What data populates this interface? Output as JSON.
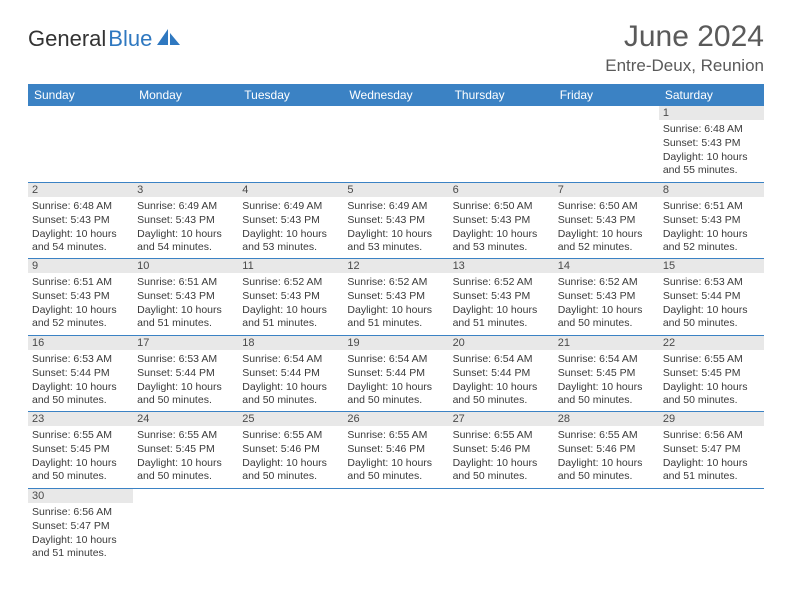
{
  "brand": {
    "part1": "General",
    "part2": "Blue"
  },
  "title": "June 2024",
  "location": "Entre-Deux, Reunion",
  "colors": {
    "header_bg": "#3b82c4",
    "header_text": "#ffffff",
    "daynum_bg": "#e8e8e8",
    "text": "#3a3a3a",
    "title_color": "#5a5a5a",
    "row_border": "#3b82c4"
  },
  "day_headers": [
    "Sunday",
    "Monday",
    "Tuesday",
    "Wednesday",
    "Thursday",
    "Friday",
    "Saturday"
  ],
  "weeks": [
    [
      null,
      null,
      null,
      null,
      null,
      null,
      {
        "n": "1",
        "sunrise": "6:48 AM",
        "sunset": "5:43 PM",
        "daylight": "10 hours and 55 minutes."
      }
    ],
    [
      {
        "n": "2",
        "sunrise": "6:48 AM",
        "sunset": "5:43 PM",
        "daylight": "10 hours and 54 minutes."
      },
      {
        "n": "3",
        "sunrise": "6:49 AM",
        "sunset": "5:43 PM",
        "daylight": "10 hours and 54 minutes."
      },
      {
        "n": "4",
        "sunrise": "6:49 AM",
        "sunset": "5:43 PM",
        "daylight": "10 hours and 53 minutes."
      },
      {
        "n": "5",
        "sunrise": "6:49 AM",
        "sunset": "5:43 PM",
        "daylight": "10 hours and 53 minutes."
      },
      {
        "n": "6",
        "sunrise": "6:50 AM",
        "sunset": "5:43 PM",
        "daylight": "10 hours and 53 minutes."
      },
      {
        "n": "7",
        "sunrise": "6:50 AM",
        "sunset": "5:43 PM",
        "daylight": "10 hours and 52 minutes."
      },
      {
        "n": "8",
        "sunrise": "6:51 AM",
        "sunset": "5:43 PM",
        "daylight": "10 hours and 52 minutes."
      }
    ],
    [
      {
        "n": "9",
        "sunrise": "6:51 AM",
        "sunset": "5:43 PM",
        "daylight": "10 hours and 52 minutes."
      },
      {
        "n": "10",
        "sunrise": "6:51 AM",
        "sunset": "5:43 PM",
        "daylight": "10 hours and 51 minutes."
      },
      {
        "n": "11",
        "sunrise": "6:52 AM",
        "sunset": "5:43 PM",
        "daylight": "10 hours and 51 minutes."
      },
      {
        "n": "12",
        "sunrise": "6:52 AM",
        "sunset": "5:43 PM",
        "daylight": "10 hours and 51 minutes."
      },
      {
        "n": "13",
        "sunrise": "6:52 AM",
        "sunset": "5:43 PM",
        "daylight": "10 hours and 51 minutes."
      },
      {
        "n": "14",
        "sunrise": "6:52 AM",
        "sunset": "5:43 PM",
        "daylight": "10 hours and 50 minutes."
      },
      {
        "n": "15",
        "sunrise": "6:53 AM",
        "sunset": "5:44 PM",
        "daylight": "10 hours and 50 minutes."
      }
    ],
    [
      {
        "n": "16",
        "sunrise": "6:53 AM",
        "sunset": "5:44 PM",
        "daylight": "10 hours and 50 minutes."
      },
      {
        "n": "17",
        "sunrise": "6:53 AM",
        "sunset": "5:44 PM",
        "daylight": "10 hours and 50 minutes."
      },
      {
        "n": "18",
        "sunrise": "6:54 AM",
        "sunset": "5:44 PM",
        "daylight": "10 hours and 50 minutes."
      },
      {
        "n": "19",
        "sunrise": "6:54 AM",
        "sunset": "5:44 PM",
        "daylight": "10 hours and 50 minutes."
      },
      {
        "n": "20",
        "sunrise": "6:54 AM",
        "sunset": "5:44 PM",
        "daylight": "10 hours and 50 minutes."
      },
      {
        "n": "21",
        "sunrise": "6:54 AM",
        "sunset": "5:45 PM",
        "daylight": "10 hours and 50 minutes."
      },
      {
        "n": "22",
        "sunrise": "6:55 AM",
        "sunset": "5:45 PM",
        "daylight": "10 hours and 50 minutes."
      }
    ],
    [
      {
        "n": "23",
        "sunrise": "6:55 AM",
        "sunset": "5:45 PM",
        "daylight": "10 hours and 50 minutes."
      },
      {
        "n": "24",
        "sunrise": "6:55 AM",
        "sunset": "5:45 PM",
        "daylight": "10 hours and 50 minutes."
      },
      {
        "n": "25",
        "sunrise": "6:55 AM",
        "sunset": "5:46 PM",
        "daylight": "10 hours and 50 minutes."
      },
      {
        "n": "26",
        "sunrise": "6:55 AM",
        "sunset": "5:46 PM",
        "daylight": "10 hours and 50 minutes."
      },
      {
        "n": "27",
        "sunrise": "6:55 AM",
        "sunset": "5:46 PM",
        "daylight": "10 hours and 50 minutes."
      },
      {
        "n": "28",
        "sunrise": "6:55 AM",
        "sunset": "5:46 PM",
        "daylight": "10 hours and 50 minutes."
      },
      {
        "n": "29",
        "sunrise": "6:56 AM",
        "sunset": "5:47 PM",
        "daylight": "10 hours and 51 minutes."
      }
    ],
    [
      {
        "n": "30",
        "sunrise": "6:56 AM",
        "sunset": "5:47 PM",
        "daylight": "10 hours and 51 minutes."
      },
      null,
      null,
      null,
      null,
      null,
      null
    ]
  ],
  "labels": {
    "sunrise": "Sunrise:",
    "sunset": "Sunset:",
    "daylight": "Daylight:"
  }
}
